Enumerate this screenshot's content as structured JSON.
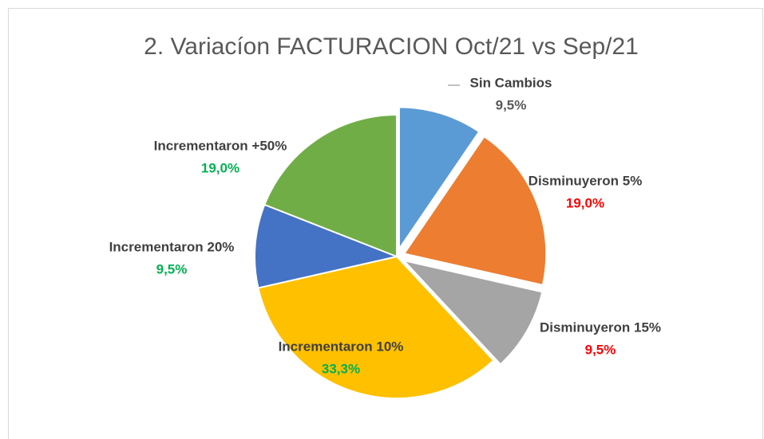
{
  "chart_data": {
    "type": "pie",
    "title": "2. Variacíon FACTURACION Oct/21 vs Sep/21",
    "categories": [
      "Sin Cambios",
      "Disminuyeron 5%",
      "Disminuyeron 15%",
      "Incrementaron 10%",
      "Incrementaron 20%",
      "Incrementaron +50%"
    ],
    "values": [
      9.5,
      19.0,
      9.5,
      33.3,
      9.5,
      19.0
    ],
    "value_labels": [
      "9,5%",
      "19,0%",
      "9,5%",
      "33,3%",
      "9,5%",
      "19,0%"
    ],
    "colors": [
      "#5b9bd5",
      "#ed7d31",
      "#a5a5a5",
      "#ffc000",
      "#4472c4",
      "#70ad47"
    ],
    "value_label_colors": [
      "#595959",
      "#ff0000",
      "#ff0000",
      "#00b050",
      "#00b050",
      "#00b050"
    ]
  }
}
